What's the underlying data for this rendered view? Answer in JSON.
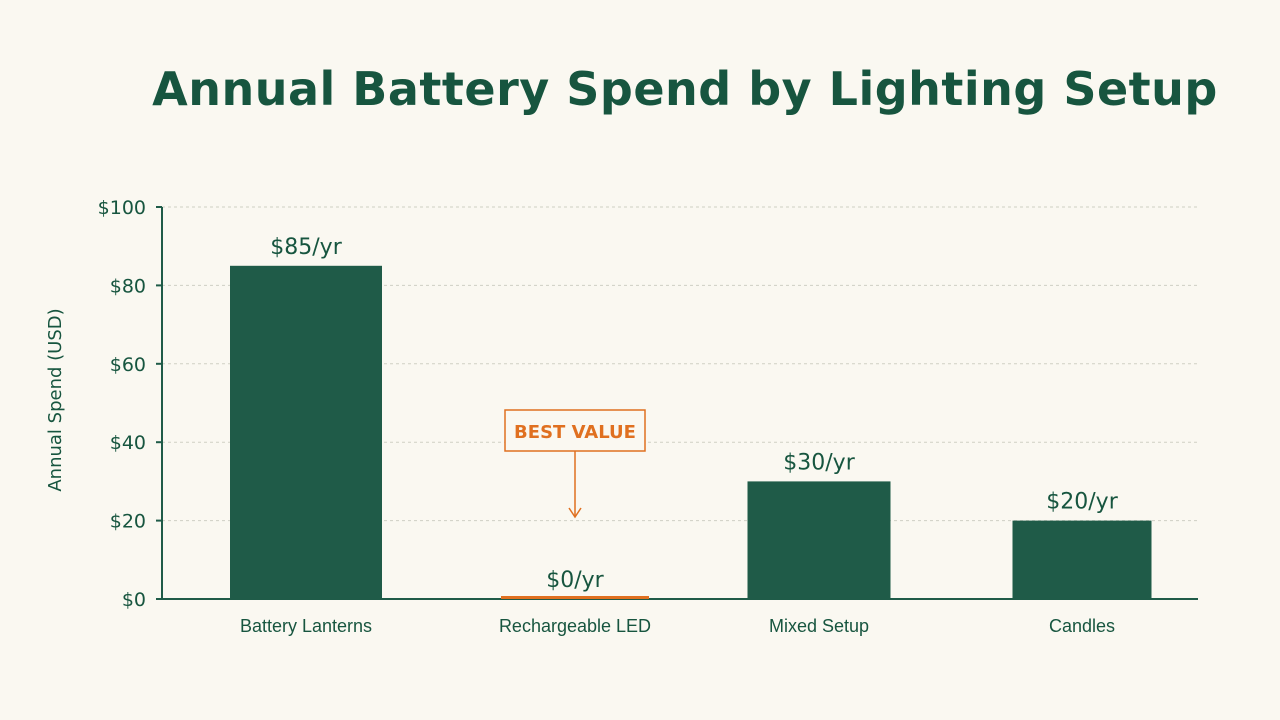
{
  "chart_data": {
    "type": "bar",
    "title": "Annual Battery Spend by Lighting Setup",
    "xlabel": "",
    "ylabel": "Annual Spend (USD)",
    "ylim": [
      0,
      100
    ],
    "yticks": [
      0,
      20,
      40,
      60,
      80,
      100
    ],
    "ytick_labels": [
      "$0",
      "$20",
      "$40",
      "$60",
      "$80",
      "$100"
    ],
    "grid": true,
    "categories": [
      "Battery Lanterns",
      "Rechargeable LED",
      "Mixed Setup",
      "Candles"
    ],
    "values": [
      85,
      0,
      30,
      20
    ],
    "data_labels": [
      "$85/yr",
      "$0/yr",
      "$30/yr",
      "$20/yr"
    ],
    "highlight_index": 1,
    "annotations": [
      {
        "category": "Rechargeable LED",
        "text": "BEST VALUE"
      }
    ],
    "colors": {
      "bar": "#1f5b48",
      "highlight": "#e07020",
      "text": "#17553f",
      "grid": "#cfcfc4",
      "axis": "#1f5b48",
      "background": "#faf8f1"
    }
  }
}
